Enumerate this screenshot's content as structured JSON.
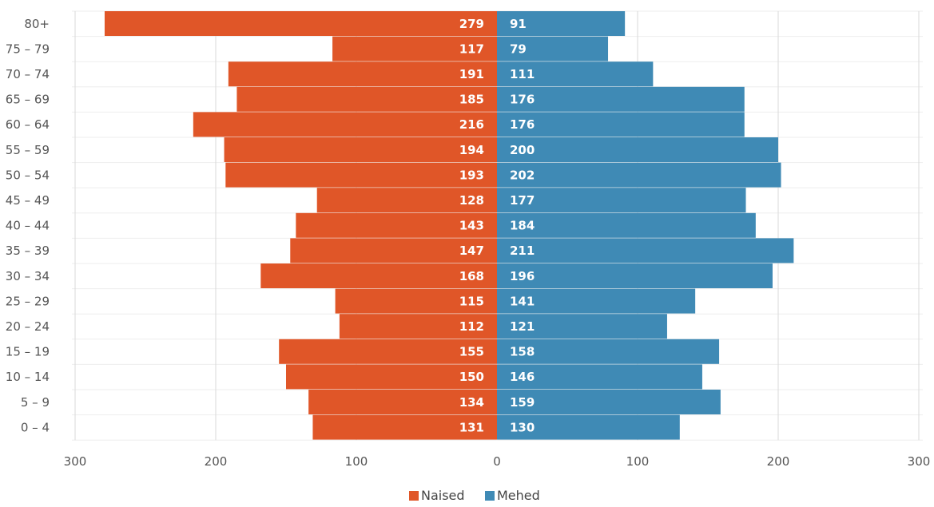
{
  "chart_data": {
    "type": "bar",
    "orientation": "horizontal",
    "layout": "population-pyramid",
    "categories": [
      "80+",
      "75 – 79",
      "70 – 74",
      "65 – 69",
      "60 – 64",
      "55 – 59",
      "50 – 54",
      "45 – 49",
      "40 – 44",
      "35 – 39",
      "30 – 34",
      "25 – 29",
      "20 – 24",
      "15 – 19",
      "10 – 14",
      "5 – 9",
      "0 – 4"
    ],
    "series": [
      {
        "name": "Naised",
        "color": "#e05628",
        "side": "left",
        "values": [
          279,
          117,
          191,
          185,
          216,
          194,
          193,
          128,
          143,
          147,
          168,
          115,
          112,
          155,
          150,
          134,
          131
        ]
      },
      {
        "name": "Mehed",
        "color": "#3f8ab5",
        "side": "right",
        "values": [
          91,
          79,
          111,
          176,
          176,
          200,
          202,
          177,
          184,
          211,
          196,
          141,
          121,
          158,
          146,
          159,
          130
        ]
      }
    ],
    "x_ticks": [
      {
        "value": -300,
        "label": "300"
      },
      {
        "value": -200,
        "label": "200"
      },
      {
        "value": -100,
        "label": "100"
      },
      {
        "value": 0,
        "label": "0"
      },
      {
        "value": 100,
        "label": "100"
      },
      {
        "value": 200,
        "label": "200"
      },
      {
        "value": 300,
        "label": "300"
      }
    ],
    "xlim": [
      -300,
      300
    ],
    "grid": true,
    "data_labels": true,
    "legend_position": "bottom"
  }
}
